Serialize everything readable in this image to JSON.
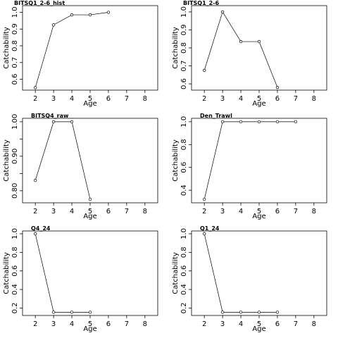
{
  "chart_data": [
    {
      "type": "line",
      "title": "BITSQ1_2-6_hist",
      "xlabel": "Age",
      "ylabel": "Catchability",
      "xlim": [
        1.3,
        8.7
      ],
      "ylim": [
        0.535,
        1.04
      ],
      "xticks": [
        2,
        3,
        4,
        5,
        6,
        7,
        8
      ],
      "yticks": [
        0.6,
        0.7,
        0.8,
        0.9,
        1.0
      ],
      "ytick_labels": [
        "0.6",
        "0.7",
        "0.8",
        "0.9",
        "1.0"
      ],
      "x": [
        2,
        3,
        4,
        5,
        6
      ],
      "values": [
        0.55,
        0.925,
        0.985,
        0.985,
        1.0
      ]
    },
    {
      "type": "line",
      "title": "BITSQ1_2-6",
      "xlabel": "Age",
      "ylabel": "Catchability",
      "xlim": [
        1.3,
        8.7
      ],
      "ylim": [
        0.565,
        1.035
      ],
      "xticks": [
        2,
        3,
        4,
        5,
        6,
        7,
        8
      ],
      "yticks": [
        0.6,
        0.7,
        0.8,
        0.9,
        1.0
      ],
      "ytick_labels": [
        "0.6",
        "0.7",
        "0.8",
        "0.9",
        "1.0"
      ],
      "x": [
        2,
        3,
        4,
        5,
        6
      ],
      "values": [
        0.675,
        1.0,
        0.835,
        0.835,
        0.58
      ]
    },
    {
      "type": "line",
      "title": "BITSQ4_raw",
      "xlabel": "Age",
      "ylabel": "Catchability",
      "xlim": [
        1.3,
        8.7
      ],
      "ylim": [
        0.765,
        1.01
      ],
      "xticks": [
        2,
        3,
        4,
        5,
        6,
        7,
        8
      ],
      "yticks": [
        0.8,
        0.85,
        0.9,
        0.95,
        1.0
      ],
      "ytick_labels": [
        "0.80",
        "",
        "0.90",
        "",
        "1.00"
      ],
      "x": [
        2,
        3,
        4,
        5
      ],
      "values": [
        0.83,
        1.0,
        1.0,
        0.775
      ]
    },
    {
      "type": "line",
      "title": "Den_Trawl",
      "xlabel": "Age",
      "ylabel": "Catchability",
      "xlim": [
        1.3,
        8.7
      ],
      "ylim": [
        0.29,
        1.03
      ],
      "xticks": [
        2,
        3,
        4,
        5,
        6,
        7,
        8
      ],
      "yticks": [
        0.4,
        0.6,
        0.8,
        1.0
      ],
      "ytick_labels": [
        "0.4",
        "0.6",
        "0.8",
        "1.0"
      ],
      "x": [
        2,
        3,
        4,
        5,
        6,
        7
      ],
      "values": [
        0.32,
        1.0,
        1.0,
        1.0,
        1.0,
        1.0
      ]
    },
    {
      "type": "line",
      "title": "Q4_24",
      "xlabel": "Age",
      "ylabel": "Catchability",
      "xlim": [
        1.3,
        8.7
      ],
      "ylim": [
        0.12,
        1.03
      ],
      "xticks": [
        2,
        3,
        4,
        5,
        6,
        7,
        8
      ],
      "yticks": [
        0.2,
        0.4,
        0.6,
        0.8,
        1.0
      ],
      "ytick_labels": [
        "0.2",
        "0.4",
        "0.6",
        "0.8",
        "1.0"
      ],
      "x": [
        2,
        3,
        4,
        5
      ],
      "values": [
        1.0,
        0.155,
        0.155,
        0.155
      ]
    },
    {
      "type": "line",
      "title": "Q1_24",
      "xlabel": "Age",
      "ylabel": "Catchability",
      "xlim": [
        1.3,
        8.7
      ],
      "ylim": [
        0.12,
        1.03
      ],
      "xticks": [
        2,
        3,
        4,
        5,
        6,
        7,
        8
      ],
      "yticks": [
        0.2,
        0.4,
        0.6,
        0.8,
        1.0
      ],
      "ytick_labels": [
        "0.2",
        "0.4",
        "0.6",
        "0.8",
        "1.0"
      ],
      "x": [
        2,
        3,
        4,
        5,
        6
      ],
      "values": [
        1.0,
        0.155,
        0.155,
        0.155,
        0.155
      ]
    }
  ]
}
